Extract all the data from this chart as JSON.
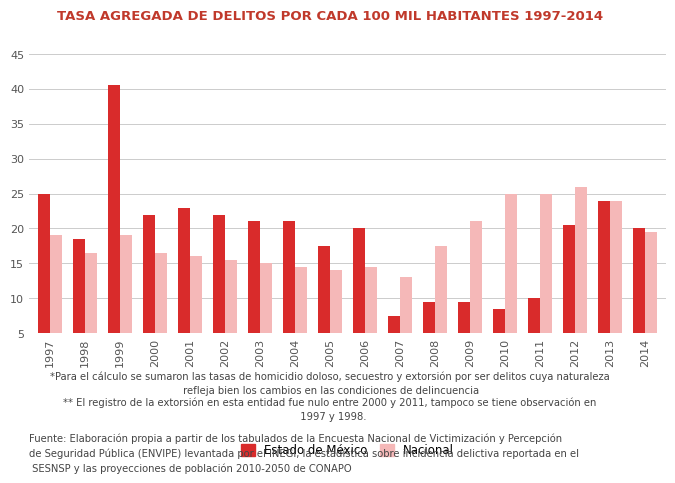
{
  "title": "TASA AGREGADA DE DELITOS POR CADA 100 MIL HABITANTES 1997-2014",
  "years": [
    1997,
    1998,
    1999,
    2000,
    2001,
    2002,
    2003,
    2004,
    2005,
    2006,
    2007,
    2008,
    2009,
    2010,
    2011,
    2012,
    2013,
    2014
  ],
  "estado_mexico": [
    25.0,
    18.5,
    40.5,
    22.0,
    23.0,
    22.0,
    21.0,
    21.0,
    17.5,
    20.0,
    7.5,
    9.5,
    9.5,
    8.5,
    10.0,
    20.5,
    24.0,
    20.0
  ],
  "nacional": [
    19.0,
    16.5,
    19.0,
    16.5,
    16.0,
    15.5,
    15.0,
    14.5,
    14.0,
    14.5,
    13.0,
    17.5,
    21.0,
    25.0,
    25.0,
    26.0,
    24.0,
    19.5
  ],
  "color_estado": "#d92b2b",
  "color_nacional": "#f5b8b8",
  "title_color": "#c0392b",
  "title_fontsize": 9.5,
  "ylim": [
    5,
    45
  ],
  "yticks": [
    5,
    10,
    15,
    20,
    25,
    30,
    35,
    40,
    45
  ],
  "legend_label_estado": "Estado de México",
  "legend_label_nacional": "Nacional",
  "note1": "*Para el cálculo se sumaron las tasas de homicidio doloso, secuestro y extorsión por ser delitos cuya naturaleza\n refleja bien los cambios en las condiciones de delincuencia",
  "note2": "** El registro de la extorsión en esta entidad fue nulo entre 2000 y 2011, tampoco se tiene observación en\n  1997 y 1998.",
  "fuente_line1": "Fuente: Elaboración propia a partir de los tabulados de la Encuesta Nacional de Victimización y Percepción",
  "fuente_line2": "de Seguridad Pública (ENVIPE) levantada por el INEGI, la estadística sobre incidencia delictiva reportada en el",
  "fuente_line3": " SESNSP y las proyecciones de población 2010-2050 de CONAPO",
  "bg_color": "#ffffff",
  "grid_color": "#cccccc",
  "bar_width": 0.35
}
